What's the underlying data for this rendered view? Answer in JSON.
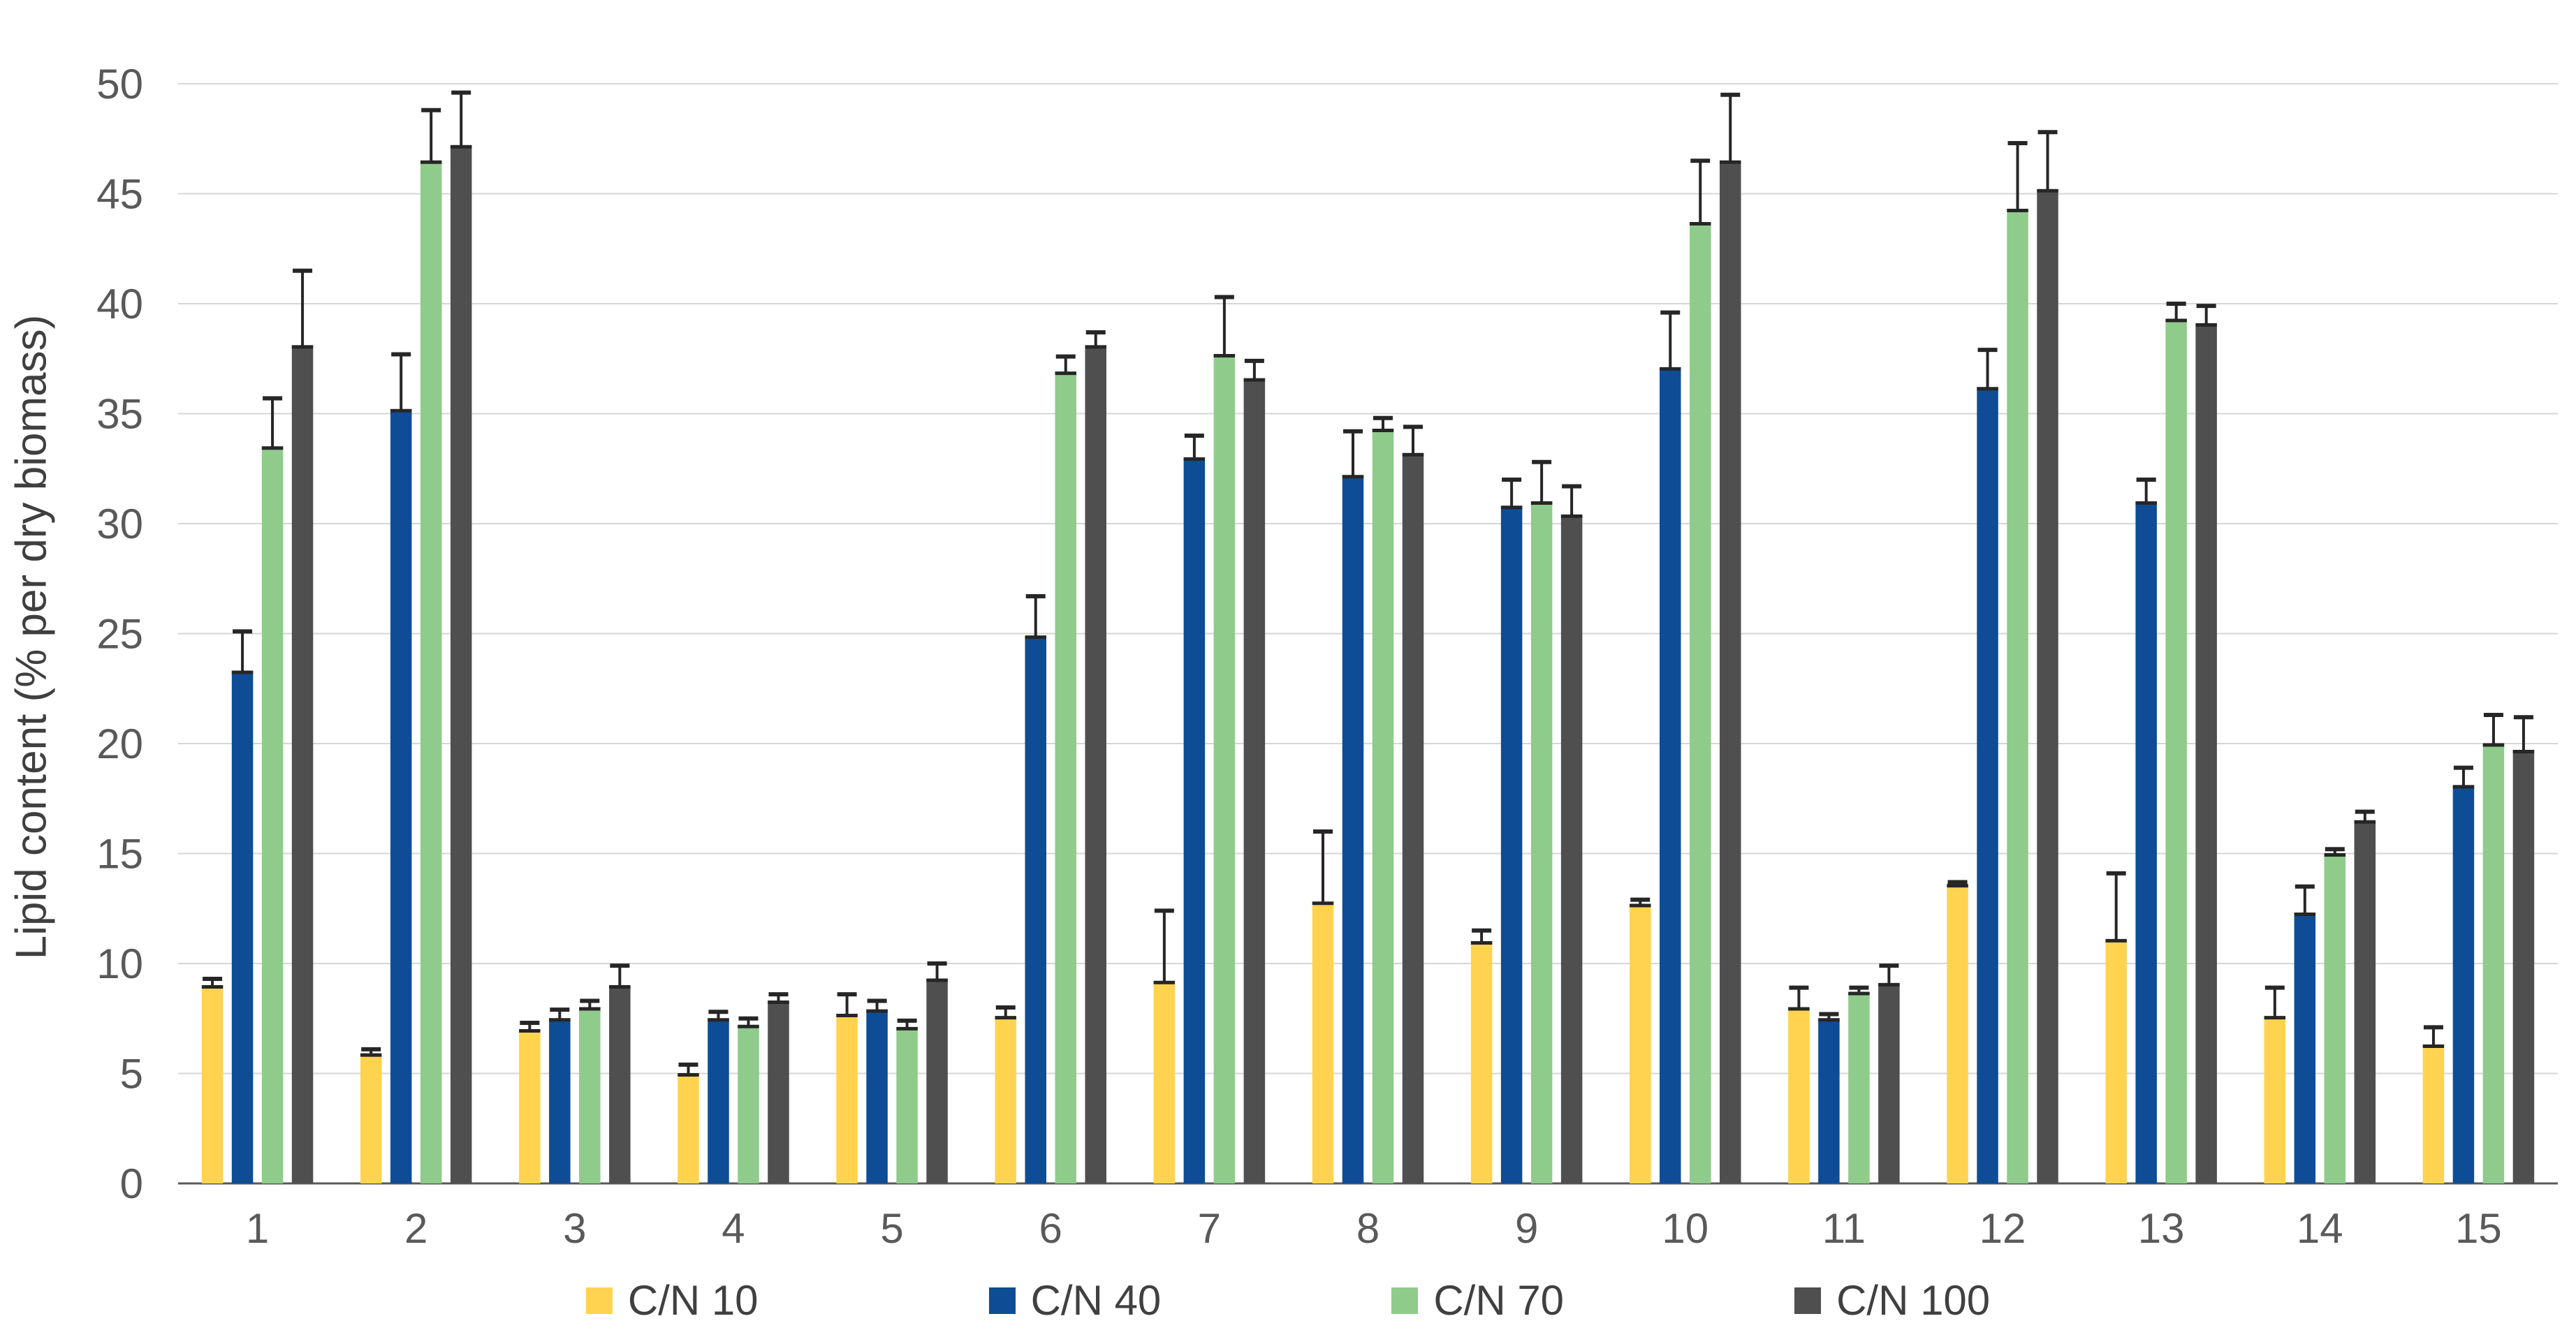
{
  "chart_data": {
    "type": "bar",
    "title": "",
    "ylabel": "Lipid content (% per dry biomass)",
    "xlabel": "",
    "ylim": [
      0,
      50
    ],
    "ytick_step": 5,
    "yticks": [
      0,
      5,
      10,
      15,
      20,
      25,
      30,
      35,
      40,
      45,
      50
    ],
    "grid": "horizontal",
    "legend_position": "bottom",
    "categories": [
      "1",
      "2",
      "3",
      "4",
      "5",
      "6",
      "7",
      "8",
      "9",
      "10",
      "11",
      "12",
      "13",
      "14",
      "15"
    ],
    "series": [
      {
        "name": "C/N 10",
        "color": "#FFD34F",
        "values": [
          9.0,
          5.9,
          7.0,
          5.0,
          7.7,
          7.6,
          9.2,
          12.8,
          11.0,
          12.7,
          8.0,
          13.6,
          11.1,
          7.6,
          6.3
        ],
        "errors": [
          0.3,
          0.2,
          0.3,
          0.4,
          0.9,
          0.4,
          3.2,
          3.2,
          0.5,
          0.2,
          0.9,
          0.1,
          3.0,
          1.3,
          0.8
        ]
      },
      {
        "name": "C/N 40",
        "color": "#0E4D95",
        "values": [
          23.3,
          35.2,
          7.5,
          7.5,
          7.9,
          24.9,
          33.0,
          32.2,
          30.8,
          37.1,
          7.5,
          36.2,
          31.0,
          12.3,
          18.1
        ],
        "errors": [
          1.8,
          2.5,
          0.4,
          0.3,
          0.4,
          1.8,
          1.0,
          2.0,
          1.2,
          2.5,
          0.2,
          1.7,
          1.0,
          1.2,
          0.8
        ]
      },
      {
        "name": "C/N 70",
        "color": "#8FCB8B",
        "values": [
          33.5,
          46.5,
          8.0,
          7.2,
          7.1,
          36.9,
          37.7,
          34.3,
          31.0,
          43.7,
          8.7,
          44.3,
          39.3,
          15.0,
          20.0
        ],
        "errors": [
          2.2,
          2.3,
          0.3,
          0.3,
          0.3,
          0.7,
          2.6,
          0.5,
          1.8,
          2.8,
          0.2,
          3.0,
          0.7,
          0.2,
          1.3
        ]
      },
      {
        "name": "C/N 100",
        "color": "#4F4F4F",
        "values": [
          38.1,
          47.2,
          9.0,
          8.3,
          9.3,
          38.1,
          36.6,
          33.2,
          30.4,
          46.5,
          9.1,
          45.2,
          39.1,
          16.5,
          19.7
        ],
        "errors": [
          3.4,
          2.4,
          0.9,
          0.3,
          0.7,
          0.6,
          0.8,
          1.2,
          1.3,
          3.0,
          0.8,
          2.6,
          0.8,
          0.4,
          1.5
        ]
      }
    ],
    "axis_text_color": "#595959",
    "gridline_color": "#D6D6D6",
    "axisline_color": "#595959",
    "errorbar_color": "#262626"
  }
}
